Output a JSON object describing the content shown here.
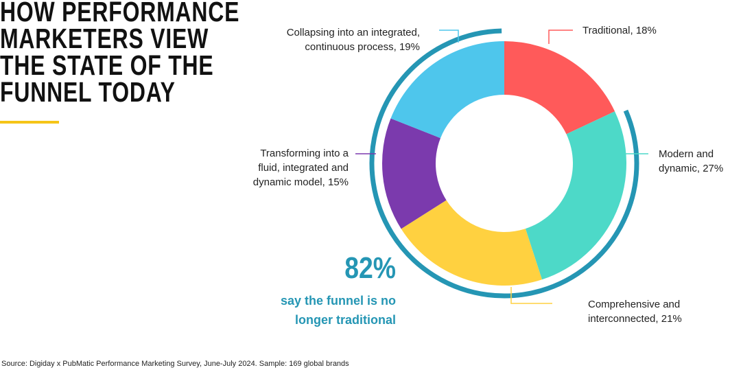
{
  "chart_data": {
    "type": "donut",
    "title": "HOW PERFORMANCE\nMARKETERS VIEW\nTHE STATE OF THE\nFUNNEL TODAY",
    "values": [
      18,
      27,
      21,
      15,
      19
    ],
    "value_labels": [
      "Traditional, 18%",
      "Modern and dynamic, 27%",
      "Comprehensive and interconnected, 21%",
      "Transforming into a fluid, integrated and dynamic model, 15%",
      "Collapsing into an integrated, continuous process, 19%"
    ],
    "colors": [
      "#ff5a5a",
      "#4dd9c8",
      "#ffd140",
      "#7b3aad",
      "#4ec6ec"
    ],
    "highlight": {
      "value": "82%",
      "text": "say the funnel is no longer traditional",
      "color": "#2596b4"
    },
    "source": "Source: Digiday x PubMatic Performance Marketing Survey, June-July 2024. Sample: 169 global brands"
  }
}
